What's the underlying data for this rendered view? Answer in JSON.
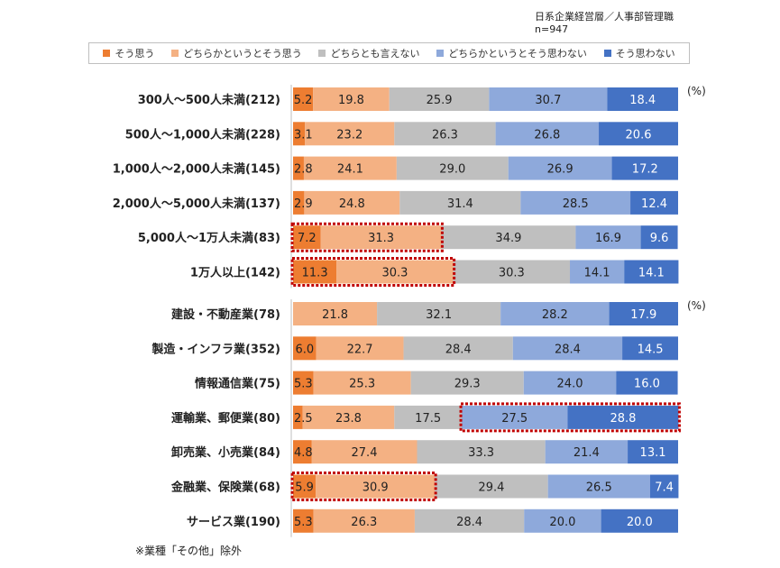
{
  "header": {
    "respondents": "日系企業経営層／人事部管理職",
    "sample_size": "n=947"
  },
  "colors": {
    "strongly_agree": "#ED7D31",
    "somewhat_agree": "#F4B183",
    "neutral": "#BFBFBF",
    "somewhat_disagree": "#8EA9DB",
    "strongly_disagree": "#4472C4",
    "highlight_border": "#C00000"
  },
  "chart_data": {
    "type": "bar",
    "orientation": "horizontal",
    "stacked": true,
    "units": "(%)",
    "xlim": [
      0,
      100
    ],
    "legend": [
      "そう思う",
      "どちらかというとそう思う",
      "どちらとも言えない",
      "どちらかというとそう思わない",
      "そう思わない"
    ],
    "legend_position": "top",
    "groups": [
      {
        "name": "company_size",
        "unit_label": "(%)",
        "rows": [
          {
            "label": "300人～500人未満(212)",
            "values": [
              5.2,
              19.8,
              25.9,
              30.7,
              18.4
            ],
            "highlight": []
          },
          {
            "label": "500人～1,000人未満(228)",
            "values": [
              3.1,
              23.2,
              26.3,
              26.8,
              20.6
            ],
            "highlight": []
          },
          {
            "label": "1,000人～2,000人未満(145)",
            "values": [
              2.8,
              24.1,
              29.0,
              26.9,
              17.2
            ],
            "highlight": []
          },
          {
            "label": "2,000人～5,000人未満(137)",
            "values": [
              2.9,
              24.8,
              31.4,
              28.5,
              12.4
            ],
            "highlight": []
          },
          {
            "label": "5,000人～1万人未満(83)",
            "values": [
              7.2,
              31.3,
              34.9,
              16.9,
              9.6
            ],
            "highlight": [
              0,
              1
            ]
          },
          {
            "label": "1万人以上(142)",
            "values": [
              11.3,
              30.3,
              30.3,
              14.1,
              14.1
            ],
            "highlight": [
              0,
              1
            ]
          }
        ]
      },
      {
        "name": "industry",
        "unit_label": "(%)",
        "rows": [
          {
            "label": "建設・不動産業(78)",
            "values": [
              0.0,
              21.8,
              32.1,
              28.2,
              17.9
            ],
            "highlight": []
          },
          {
            "label": "製造・インフラ業(352)",
            "values": [
              6.0,
              22.7,
              28.4,
              28.4,
              14.5
            ],
            "highlight": []
          },
          {
            "label": "情報通信業(75)",
            "values": [
              5.3,
              25.3,
              29.3,
              24.0,
              16.0
            ],
            "highlight": []
          },
          {
            "label": "運輸業、郵便業(80)",
            "values": [
              2.5,
              23.8,
              17.5,
              27.5,
              28.8
            ],
            "highlight": [
              3,
              4
            ]
          },
          {
            "label": "卸売業、小売業(84)",
            "values": [
              4.8,
              27.4,
              33.3,
              21.4,
              13.1
            ],
            "highlight": []
          },
          {
            "label": "金融業、保険業(68)",
            "values": [
              5.9,
              30.9,
              29.4,
              26.5,
              7.4
            ],
            "highlight": [
              0,
              1
            ]
          },
          {
            "label": "サービス業(190)",
            "values": [
              5.3,
              26.3,
              28.4,
              20.0,
              20.0
            ],
            "highlight": []
          }
        ]
      }
    ]
  },
  "footnote": "※業種「その他」除外"
}
